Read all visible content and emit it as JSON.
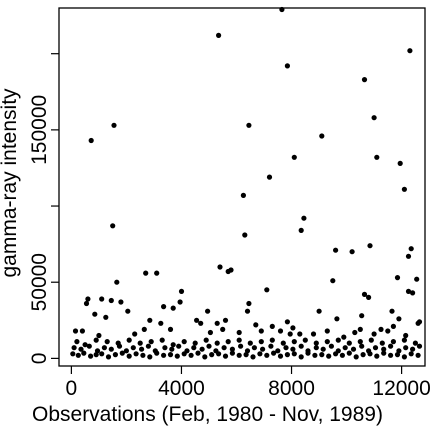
{
  "chart_data": {
    "type": "scatter",
    "title": "",
    "xlabel": "Observations (Feb, 1980 - Nov, 1989)",
    "ylabel": "gamma-ray intensity",
    "xlim": [
      -450,
      12850
    ],
    "ylim": [
      -5000,
      230000
    ],
    "xticks": [
      0,
      4000,
      8000,
      12000
    ],
    "xtick_labels": [
      "0",
      "4000",
      "8000",
      "12000"
    ],
    "yticks": [
      0,
      50000,
      100000,
      150000,
      200000
    ],
    "ytick_labels": [
      "0",
      "50000",
      "",
      "150000",
      ""
    ],
    "grid": false,
    "legend": "none",
    "point_color": "#000000",
    "notes": "Approximate values read from the plot; dense cluster of ~thousands of points near zero is represented by a sampled subset.",
    "points": [
      [
        720,
        143000
      ],
      [
        1550,
        153000
      ],
      [
        5350,
        212000
      ],
      [
        6450,
        153000
      ],
      [
        7650,
        229000
      ],
      [
        7850,
        192000
      ],
      [
        8100,
        132000
      ],
      [
        9100,
        146000
      ],
      [
        10650,
        183000
      ],
      [
        11000,
        158000
      ],
      [
        11100,
        132000
      ],
      [
        12300,
        202000
      ],
      [
        11950,
        128000
      ],
      [
        12100,
        111000
      ],
      [
        7200,
        119000
      ],
      [
        6250,
        107000
      ],
      [
        8450,
        92000
      ],
      [
        8350,
        84000
      ],
      [
        6300,
        81000
      ],
      [
        5400,
        60000
      ],
      [
        5700,
        57000
      ],
      [
        5800,
        58000
      ],
      [
        2700,
        56000
      ],
      [
        3100,
        56000
      ],
      [
        9600,
        71000
      ],
      [
        10200,
        70000
      ],
      [
        10850,
        74000
      ],
      [
        12350,
        72000
      ],
      [
        12250,
        67000
      ],
      [
        12550,
        52000
      ],
      [
        11850,
        53000
      ],
      [
        9500,
        51000
      ],
      [
        4000,
        44000
      ],
      [
        3700,
        33000
      ],
      [
        3350,
        34000
      ],
      [
        3950,
        37000
      ],
      [
        7100,
        45000
      ],
      [
        6450,
        36000
      ],
      [
        6400,
        31000
      ],
      [
        9650,
        26000
      ],
      [
        10550,
        28000
      ],
      [
        10650,
        42000
      ],
      [
        10800,
        40000
      ],
      [
        12250,
        44000
      ],
      [
        12400,
        43000
      ],
      [
        12600,
        23000
      ],
      [
        12650,
        24000
      ],
      [
        11650,
        31000
      ],
      [
        1450,
        38000
      ],
      [
        1650,
        50000
      ],
      [
        1500,
        87000
      ],
      [
        600,
        39000
      ],
      [
        550,
        36000
      ],
      [
        1800,
        37000
      ],
      [
        1100,
        39000
      ],
      [
        850,
        29000
      ],
      [
        1250,
        27000
      ],
      [
        2050,
        31000
      ],
      [
        4950,
        31000
      ],
      [
        4550,
        25000
      ],
      [
        4700,
        23000
      ],
      [
        5300,
        23000
      ],
      [
        2850,
        25000
      ],
      [
        2650,
        19000
      ],
      [
        3250,
        23000
      ],
      [
        3600,
        19000
      ],
      [
        5600,
        25000
      ],
      [
        5500,
        19000
      ],
      [
        6700,
        22000
      ],
      [
        6900,
        18000
      ],
      [
        7300,
        21000
      ],
      [
        7600,
        18000
      ],
      [
        7850,
        24000
      ],
      [
        8050,
        20000
      ],
      [
        8800,
        16000
      ],
      [
        9000,
        31000
      ],
      [
        9300,
        18000
      ],
      [
        9900,
        14000
      ],
      [
        10300,
        17000
      ],
      [
        10500,
        19000
      ],
      [
        11000,
        16000
      ],
      [
        11250,
        19000
      ],
      [
        11500,
        18000
      ],
      [
        11700,
        21000
      ],
      [
        11900,
        26000
      ],
      [
        12150,
        15000
      ],
      [
        150,
        18000
      ],
      [
        400,
        18000
      ],
      [
        1000,
        15000
      ],
      [
        2300,
        16000
      ],
      [
        5050,
        17000
      ],
      [
        6100,
        17000
      ],
      [
        7950,
        16000
      ],
      [
        8300,
        16000
      ],
      [
        200,
        11000
      ],
      [
        500,
        9000
      ],
      [
        900,
        12000
      ],
      [
        1300,
        11000
      ],
      [
        1700,
        10000
      ],
      [
        2100,
        12000
      ],
      [
        2500,
        10000
      ],
      [
        2900,
        11000
      ],
      [
        3300,
        12000
      ],
      [
        3700,
        9000
      ],
      [
        4100,
        11000
      ],
      [
        4500,
        10000
      ],
      [
        4900,
        12000
      ],
      [
        5300,
        10000
      ],
      [
        5700,
        11000
      ],
      [
        6100,
        12000
      ],
      [
        6500,
        10000
      ],
      [
        6900,
        11000
      ],
      [
        7300,
        12000
      ],
      [
        7700,
        10000
      ],
      [
        8100,
        11000
      ],
      [
        8500,
        12000
      ],
      [
        8900,
        10000
      ],
      [
        9300,
        11000
      ],
      [
        9700,
        12000
      ],
      [
        10100,
        10000
      ],
      [
        10500,
        11000
      ],
      [
        10900,
        12000
      ],
      [
        11300,
        10000
      ],
      [
        11700,
        11000
      ],
      [
        12100,
        12000
      ],
      [
        12500,
        10000
      ],
      [
        100,
        7000
      ],
      [
        350,
        6000
      ],
      [
        650,
        8000
      ],
      [
        950,
        5000
      ],
      [
        1200,
        7000
      ],
      [
        1450,
        6000
      ],
      [
        1750,
        8000
      ],
      [
        2000,
        5000
      ],
      [
        2250,
        7000
      ],
      [
        2550,
        6000
      ],
      [
        2800,
        8000
      ],
      [
        3050,
        5000
      ],
      [
        3400,
        7000
      ],
      [
        3650,
        6000
      ],
      [
        3900,
        8000
      ],
      [
        4200,
        5000
      ],
      [
        4450,
        7000
      ],
      [
        4750,
        6000
      ],
      [
        5000,
        8000
      ],
      [
        5250,
        5000
      ],
      [
        5550,
        7000
      ],
      [
        5850,
        6000
      ],
      [
        6150,
        8000
      ],
      [
        6400,
        5000
      ],
      [
        6650,
        7000
      ],
      [
        6950,
        6000
      ],
      [
        7250,
        8000
      ],
      [
        7500,
        5000
      ],
      [
        7800,
        7000
      ],
      [
        8050,
        6000
      ],
      [
        8350,
        8000
      ],
      [
        8600,
        5000
      ],
      [
        8900,
        7000
      ],
      [
        9150,
        6000
      ],
      [
        9450,
        8000
      ],
      [
        9700,
        5000
      ],
      [
        9950,
        7000
      ],
      [
        10250,
        6000
      ],
      [
        10550,
        8000
      ],
      [
        10800,
        5000
      ],
      [
        11050,
        7000
      ],
      [
        11350,
        6000
      ],
      [
        11600,
        8000
      ],
      [
        11900,
        5000
      ],
      [
        12150,
        7000
      ],
      [
        12400,
        6000
      ],
      [
        12650,
        8000
      ],
      [
        50,
        3000
      ],
      [
        250,
        2000
      ],
      [
        450,
        3500
      ],
      [
        700,
        1500
      ],
      [
        900,
        2500
      ],
      [
        1100,
        3000
      ],
      [
        1350,
        1000
      ],
      [
        1600,
        2500
      ],
      [
        1850,
        3500
      ],
      [
        2100,
        1500
      ],
      [
        2350,
        3000
      ],
      [
        2600,
        2000
      ],
      [
        2850,
        1000
      ],
      [
        3100,
        3500
      ],
      [
        3350,
        2000
      ],
      [
        3600,
        2500
      ],
      [
        3850,
        1500
      ],
      [
        4100,
        3000
      ],
      [
        4350,
        2000
      ],
      [
        4600,
        3500
      ],
      [
        4850,
        1000
      ],
      [
        5100,
        2500
      ],
      [
        5350,
        3000
      ],
      [
        5600,
        1500
      ],
      [
        5850,
        3500
      ],
      [
        6100,
        2000
      ],
      [
        6350,
        2500
      ],
      [
        6600,
        1000
      ],
      [
        6850,
        3000
      ],
      [
        7100,
        2000
      ],
      [
        7350,
        3500
      ],
      [
        7600,
        1500
      ],
      [
        7850,
        2500
      ],
      [
        8100,
        3000
      ],
      [
        8350,
        1000
      ],
      [
        8600,
        3500
      ],
      [
        8850,
        2000
      ],
      [
        9100,
        2500
      ],
      [
        9350,
        1500
      ],
      [
        9600,
        3000
      ],
      [
        9850,
        2000
      ],
      [
        10100,
        3500
      ],
      [
        10350,
        1000
      ],
      [
        10600,
        2500
      ],
      [
        10850,
        3000
      ],
      [
        11100,
        1500
      ],
      [
        11350,
        3500
      ],
      [
        11600,
        2000
      ],
      [
        11850,
        2500
      ],
      [
        12100,
        1000
      ],
      [
        12350,
        3000
      ],
      [
        12600,
        2000
      ]
    ]
  }
}
